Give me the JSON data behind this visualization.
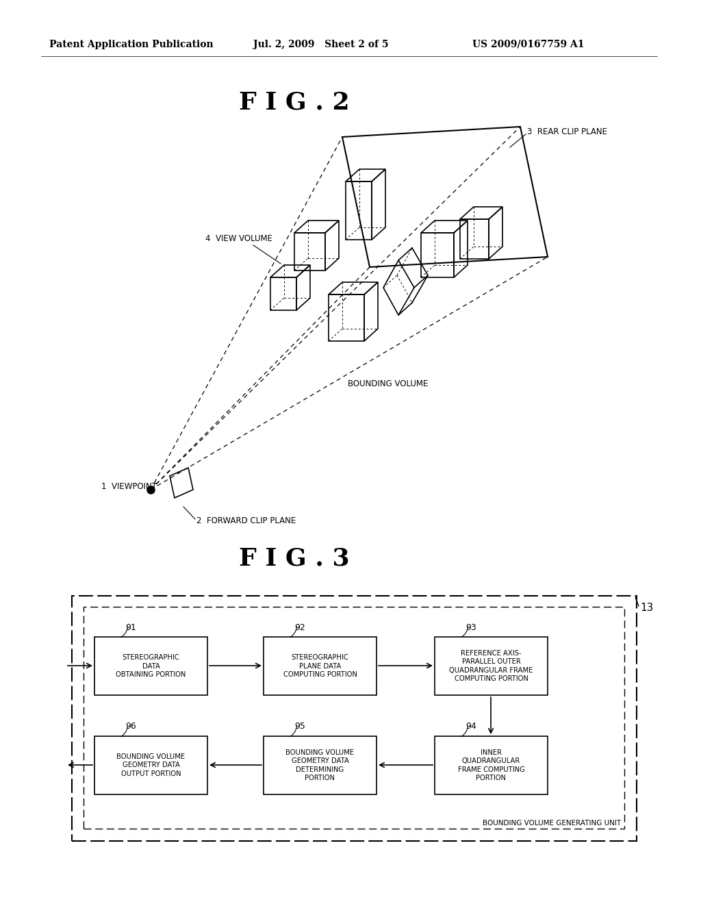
{
  "bg_color": "#ffffff",
  "header_left": "Patent Application Publication",
  "header_mid": "Jul. 2, 2009   Sheet 2 of 5",
  "header_right": "US 2009/0167759 A1",
  "fig2_title": "F I G . 2",
  "fig3_title": "F I G . 3",
  "label_1": "1  VIEWPOINT",
  "label_2": "2  FORWARD CLIP PLANE",
  "label_3": "3  REAR CLIP PLANE",
  "label_4": "4  VIEW VOLUME",
  "label_bv": "BOUNDING VOLUME",
  "label_13": "13",
  "box_labels": {
    "91": "STEREOGRAPHIC\nDATA\nOBTAINING PORTION",
    "92": "STEREOGRAPHIC\nPLANE DATA\nCOMPUTING PORTION",
    "93": "REFERENCE AXIS-\nPARALLEL OUTER\nQUADRANGULAR FRAME\nCOMPUTING PORTION",
    "94": "INNER\nQUADRANGULAR\nFRAME COMPUTING\nPORTION",
    "95": "BOUNDING VOLUME\nGEOMETRY DATA\nDETERMINING\nPORTION",
    "96": "BOUNDING VOLUME\nGEOMETRY DATA\nOUTPUT PORTION"
  },
  "unit_label": "BOUNDING VOLUME GENERATING UNIT"
}
